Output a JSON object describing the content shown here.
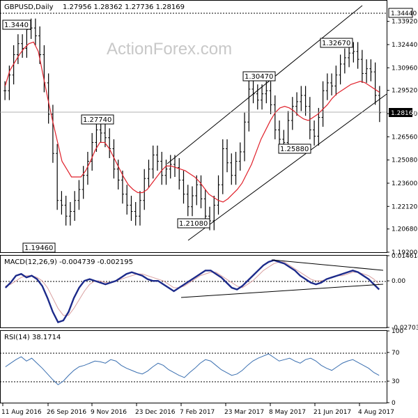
{
  "header": {
    "symbol": "GBPUSD,Daily",
    "ohlc": "1.27956 1.28362 1.27736 1.28169"
  },
  "watermark": "ActionForex.com",
  "colors": {
    "price": "#000000",
    "ma": "#e0202a",
    "macd": "#1c2a8a",
    "signal": "#d9a0a0",
    "rsi": "#3a6fb0",
    "grid": "#000000"
  },
  "chart_data": [
    {
      "type": "line",
      "panel": "price",
      "title": "GBPUSD,Daily",
      "y_ticks": [
        "1.33920",
        "1.32440",
        "1.30960",
        "1.29520",
        "1.28040",
        "1.26560",
        "1.25080",
        "1.23600",
        "1.22120",
        "1.20680",
        "1.19200"
      ],
      "ylim": [
        1.192,
        1.3444
      ],
      "current_value": "1.28169",
      "level_value": "1.34440",
      "labeled_points": [
        {
          "label": "1.19460"
        },
        {
          "label": "1.27740"
        },
        {
          "label": "1.21080"
        },
        {
          "label": "1.30470"
        },
        {
          "label": "1.25880"
        },
        {
          "label": "1.32670"
        },
        {
          "label": "1.3440"
        }
      ],
      "series_close": [
        1.295,
        1.305,
        1.318,
        1.325,
        1.322,
        1.334,
        1.335,
        1.33,
        1.318,
        1.3,
        1.28,
        1.255,
        1.225,
        1.222,
        1.215,
        1.218,
        1.225,
        1.232,
        1.241,
        1.25,
        1.262,
        1.27,
        1.268,
        1.265,
        1.258,
        1.245,
        1.238,
        1.229,
        1.222,
        1.218,
        1.215,
        1.225,
        1.239,
        1.245,
        1.254,
        1.25,
        1.241,
        1.245,
        1.248,
        1.246,
        1.238,
        1.229,
        1.221,
        1.228,
        1.235,
        1.226,
        1.215,
        1.212,
        1.222,
        1.235,
        1.258,
        1.249,
        1.241,
        1.25,
        1.256,
        1.275,
        1.296,
        1.293,
        1.289,
        1.293,
        1.295,
        1.286,
        1.27,
        1.264,
        1.262,
        1.276,
        1.285,
        1.288,
        1.292,
        1.285,
        1.27,
        1.266,
        1.278,
        1.295,
        1.3,
        1.298,
        1.305,
        1.312,
        1.316,
        1.319,
        1.32,
        1.315,
        1.306,
        1.309,
        1.307,
        1.292,
        1.281
      ],
      "series_ma": [
        1.298,
        1.308,
        1.313,
        1.318,
        1.322,
        1.325,
        1.326,
        1.32,
        1.305,
        1.29,
        1.276,
        1.263,
        1.25,
        1.245,
        1.24,
        1.24,
        1.24,
        1.244,
        1.25,
        1.257,
        1.262,
        1.262,
        1.258,
        1.252,
        1.246,
        1.24,
        1.235,
        1.232,
        1.23,
        1.23,
        1.232,
        1.236,
        1.24,
        1.244,
        1.247,
        1.247,
        1.246,
        1.245,
        1.244,
        1.242,
        1.24,
        1.237,
        1.233,
        1.229,
        1.227,
        1.225,
        1.224,
        1.226,
        1.229,
        1.232,
        1.236,
        1.242,
        1.248,
        1.256,
        1.264,
        1.27,
        1.276,
        1.281,
        1.284,
        1.285,
        1.284,
        1.282,
        1.279,
        1.277,
        1.276,
        1.278,
        1.28,
        1.283,
        1.286,
        1.29,
        1.293,
        1.295,
        1.297,
        1.299,
        1.3,
        1.301,
        1.3,
        1.298,
        1.296,
        1.294
      ],
      "x_labels": [
        "11 Aug 2016",
        "26 Sep 2016",
        "9 Nov 2016",
        "23 Dec 2016",
        "7 Feb 2017",
        "23 Mar 2017",
        "8 May 2017",
        "21 Jun 2017",
        "4 Aug 2017"
      ]
    },
    {
      "type": "line",
      "panel": "macd",
      "title": "MACD(12,26,9) -0.004739 -0.002195",
      "y_ticks": [
        "0.014614",
        "0.00",
        "-0.027031"
      ],
      "ylim": [
        -0.027031,
        0.014614
      ],
      "series": [
        {
          "values": [
            -0.004,
            -0.001,
            0.003,
            0.004,
            0.002,
            0.003,
            0.001,
            -0.003,
            -0.01,
            -0.018,
            -0.024,
            -0.023,
            -0.018,
            -0.01,
            -0.004,
            0.0,
            0.001,
            0.0,
            -0.001,
            -0.002,
            -0.001,
            0.0,
            0.002,
            0.004,
            0.005,
            0.004,
            0.003,
            0.001,
            0.0,
            0.0,
            -0.002,
            -0.004,
            -0.006,
            -0.004,
            -0.002,
            0.0,
            0.002,
            0.004,
            0.006,
            0.006,
            0.004,
            0.002,
            -0.001,
            -0.004,
            -0.005,
            -0.003,
            0.0,
            0.003,
            0.006,
            0.009,
            0.011,
            0.012,
            0.011,
            0.01,
            0.008,
            0.006,
            0.003,
            0.001,
            -0.001,
            -0.002,
            -0.001,
            0.001,
            0.002,
            0.003,
            0.004,
            0.005,
            0.006,
            0.005,
            0.003,
            0.001,
            -0.002,
            -0.005
          ]
        },
        {
          "values": [
            -0.003,
            -0.002,
            0.0,
            0.002,
            0.003,
            0.003,
            0.002,
            0.0,
            -0.004,
            -0.01,
            -0.016,
            -0.02,
            -0.02,
            -0.016,
            -0.011,
            -0.006,
            -0.002,
            0.0,
            0.0,
            -0.001,
            -0.001,
            0.0,
            0.001,
            0.002,
            0.003,
            0.004,
            0.004,
            0.003,
            0.002,
            0.001,
            0.0,
            -0.002,
            -0.004,
            -0.004,
            -0.003,
            -0.001,
            0.001,
            0.003,
            0.004,
            0.005,
            0.005,
            0.003,
            0.001,
            -0.001,
            -0.003,
            -0.004,
            -0.002,
            0.0,
            0.003,
            0.006,
            0.008,
            0.01,
            0.011,
            0.011,
            0.009,
            0.007,
            0.005,
            0.003,
            0.001,
            0.0,
            0.0,
            0.001,
            0.002,
            0.003,
            0.003,
            0.004,
            0.005,
            0.005,
            0.004,
            0.003,
            0.001,
            -0.002
          ]
        }
      ]
    },
    {
      "type": "line",
      "panel": "rsi",
      "title": "RSI(14) 38.1714",
      "y_ticks": [
        "100",
        "70",
        "30",
        "0"
      ],
      "ylim": [
        0,
        100
      ],
      "values": [
        50,
        55,
        60,
        64,
        58,
        62,
        55,
        48,
        40,
        32,
        25,
        30,
        38,
        45,
        50,
        52,
        55,
        58,
        57,
        55,
        60,
        58,
        52,
        48,
        45,
        42,
        40,
        44,
        50,
        55,
        52,
        46,
        42,
        38,
        35,
        42,
        48,
        55,
        60,
        58,
        52,
        46,
        42,
        38,
        40,
        45,
        52,
        58,
        62,
        65,
        68,
        63,
        58,
        60,
        62,
        58,
        55,
        60,
        62,
        58,
        52,
        48,
        45,
        50,
        55,
        58,
        60,
        56,
        52,
        48,
        42,
        38
      ]
    }
  ]
}
